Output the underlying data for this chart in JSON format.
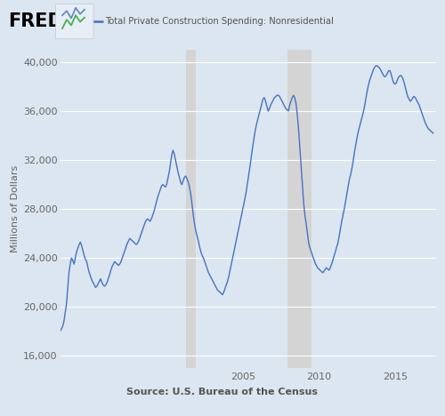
{
  "title": "Total Private Construction Spending: Nonresidential",
  "ylabel": "Millions of Dollars",
  "source": "Source: U.S. Bureau of the Census",
  "background_color": "#dce6f0",
  "plot_background": "#dce6f0",
  "line_color": "#4472c4",
  "line_width": 1.0,
  "ylim": [
    15000,
    41000
  ],
  "yticks": [
    16000,
    20000,
    24000,
    28000,
    32000,
    36000,
    40000
  ],
  "xlim_start": 1993.0,
  "xlim_end": 2017.7,
  "xtick_years": [
    2005,
    2010,
    2015
  ],
  "recession_bands": [
    {
      "start": 2001.25,
      "end": 2001.917
    },
    {
      "start": 2007.917,
      "end": 2009.5
    }
  ],
  "recession_color": "#d4d4d4",
  "axis_text_color": "#666666",
  "series": {
    "dates": [
      1993.0,
      1993.083,
      1993.167,
      1993.25,
      1993.333,
      1993.417,
      1993.5,
      1993.583,
      1993.667,
      1993.75,
      1993.833,
      1993.917,
      1994.0,
      1994.083,
      1994.167,
      1994.25,
      1994.333,
      1994.417,
      1994.5,
      1994.583,
      1994.667,
      1994.75,
      1994.833,
      1994.917,
      1995.0,
      1995.083,
      1995.167,
      1995.25,
      1995.333,
      1995.417,
      1995.5,
      1995.583,
      1995.667,
      1995.75,
      1995.833,
      1995.917,
      1996.0,
      1996.083,
      1996.167,
      1996.25,
      1996.333,
      1996.417,
      1996.5,
      1996.583,
      1996.667,
      1996.75,
      1996.833,
      1996.917,
      1997.0,
      1997.083,
      1997.167,
      1997.25,
      1997.333,
      1997.417,
      1997.5,
      1997.583,
      1997.667,
      1997.75,
      1997.833,
      1997.917,
      1998.0,
      1998.083,
      1998.167,
      1998.25,
      1998.333,
      1998.417,
      1998.5,
      1998.583,
      1998.667,
      1998.75,
      1998.833,
      1998.917,
      1999.0,
      1999.083,
      1999.167,
      1999.25,
      1999.333,
      1999.417,
      1999.5,
      1999.583,
      1999.667,
      1999.75,
      1999.833,
      1999.917,
      2000.0,
      2000.083,
      2000.167,
      2000.25,
      2000.333,
      2000.417,
      2000.5,
      2000.583,
      2000.667,
      2000.75,
      2000.833,
      2000.917,
      2001.0,
      2001.083,
      2001.167,
      2001.25,
      2001.333,
      2001.417,
      2001.5,
      2001.583,
      2001.667,
      2001.75,
      2001.833,
      2001.917,
      2002.0,
      2002.083,
      2002.167,
      2002.25,
      2002.333,
      2002.417,
      2002.5,
      2002.583,
      2002.667,
      2002.75,
      2002.833,
      2002.917,
      2003.0,
      2003.083,
      2003.167,
      2003.25,
      2003.333,
      2003.417,
      2003.5,
      2003.583,
      2003.667,
      2003.75,
      2003.833,
      2003.917,
      2004.0,
      2004.083,
      2004.167,
      2004.25,
      2004.333,
      2004.417,
      2004.5,
      2004.583,
      2004.667,
      2004.75,
      2004.833,
      2004.917,
      2005.0,
      2005.083,
      2005.167,
      2005.25,
      2005.333,
      2005.417,
      2005.5,
      2005.583,
      2005.667,
      2005.75,
      2005.833,
      2005.917,
      2006.0,
      2006.083,
      2006.167,
      2006.25,
      2006.333,
      2006.417,
      2006.5,
      2006.583,
      2006.667,
      2006.75,
      2006.833,
      2006.917,
      2007.0,
      2007.083,
      2007.167,
      2007.25,
      2007.333,
      2007.417,
      2007.5,
      2007.583,
      2007.667,
      2007.75,
      2007.833,
      2007.917,
      2008.0,
      2008.083,
      2008.167,
      2008.25,
      2008.333,
      2008.417,
      2008.5,
      2008.583,
      2008.667,
      2008.75,
      2008.833,
      2008.917,
      2009.0,
      2009.083,
      2009.167,
      2009.25,
      2009.333,
      2009.417,
      2009.5,
      2009.583,
      2009.667,
      2009.75,
      2009.833,
      2009.917,
      2010.0,
      2010.083,
      2010.167,
      2010.25,
      2010.333,
      2010.417,
      2010.5,
      2010.583,
      2010.667,
      2010.75,
      2010.833,
      2010.917,
      2011.0,
      2011.083,
      2011.167,
      2011.25,
      2011.333,
      2011.417,
      2011.5,
      2011.583,
      2011.667,
      2011.75,
      2011.833,
      2011.917,
      2012.0,
      2012.083,
      2012.167,
      2012.25,
      2012.333,
      2012.417,
      2012.5,
      2012.583,
      2012.667,
      2012.75,
      2012.833,
      2012.917,
      2013.0,
      2013.083,
      2013.167,
      2013.25,
      2013.333,
      2013.417,
      2013.5,
      2013.583,
      2013.667,
      2013.75,
      2013.833,
      2013.917,
      2014.0,
      2014.083,
      2014.167,
      2014.25,
      2014.333,
      2014.417,
      2014.5,
      2014.583,
      2014.667,
      2014.75,
      2014.833,
      2014.917,
      2015.0,
      2015.083,
      2015.167,
      2015.25,
      2015.333,
      2015.417,
      2015.5,
      2015.583,
      2015.667,
      2015.75,
      2015.833,
      2015.917,
      2016.0,
      2016.083,
      2016.167,
      2016.25,
      2016.333,
      2016.417,
      2016.5,
      2016.583,
      2016.667,
      2016.75,
      2016.833,
      2016.917,
      2017.0,
      2017.083,
      2017.167,
      2017.25,
      2017.333,
      2017.417,
      2017.5
    ],
    "values": [
      18000,
      18200,
      18400,
      18800,
      19500,
      20200,
      21500,
      22800,
      23500,
      24000,
      23800,
      23500,
      24000,
      24500,
      24800,
      25100,
      25300,
      25000,
      24600,
      24200,
      23900,
      23700,
      23200,
      22800,
      22500,
      22200,
      22000,
      21800,
      21600,
      21700,
      21900,
      22100,
      22300,
      22000,
      21800,
      21700,
      21800,
      22000,
      22300,
      22600,
      23000,
      23300,
      23500,
      23700,
      23600,
      23500,
      23400,
      23500,
      23700,
      24000,
      24300,
      24600,
      24900,
      25200,
      25400,
      25600,
      25500,
      25400,
      25300,
      25200,
      25100,
      25200,
      25400,
      25700,
      26000,
      26300,
      26600,
      26900,
      27100,
      27200,
      27100,
      27000,
      27200,
      27500,
      27800,
      28200,
      28600,
      29000,
      29300,
      29600,
      29900,
      30000,
      29900,
      29800,
      30000,
      30500,
      31000,
      31700,
      32400,
      32800,
      32500,
      32000,
      31500,
      31000,
      30600,
      30200,
      30000,
      30300,
      30600,
      30700,
      30500,
      30200,
      29800,
      29200,
      28400,
      27500,
      26800,
      26200,
      25800,
      25400,
      24900,
      24500,
      24200,
      24000,
      23700,
      23400,
      23100,
      22800,
      22600,
      22400,
      22200,
      22000,
      21800,
      21600,
      21400,
      21300,
      21200,
      21100,
      21000,
      21200,
      21500,
      21800,
      22100,
      22500,
      23000,
      23500,
      24000,
      24500,
      25000,
      25500,
      26000,
      26500,
      27000,
      27500,
      28000,
      28500,
      29000,
      29600,
      30300,
      31000,
      31700,
      32500,
      33200,
      33900,
      34500,
      35000,
      35400,
      35800,
      36200,
      36600,
      37000,
      37100,
      36800,
      36400,
      36000,
      36200,
      36500,
      36700,
      36900,
      37100,
      37200,
      37300,
      37300,
      37200,
      37000,
      36800,
      36600,
      36400,
      36200,
      36100,
      36000,
      36500,
      36800,
      37100,
      37300,
      37100,
      36600,
      35700,
      34500,
      33000,
      31500,
      30000,
      28500,
      27500,
      26800,
      26000,
      25200,
      24800,
      24500,
      24200,
      23900,
      23600,
      23400,
      23200,
      23100,
      23000,
      22900,
      22800,
      22900,
      23100,
      23200,
      23100,
      23000,
      23200,
      23500,
      23800,
      24200,
      24500,
      24900,
      25200,
      25800,
      26400,
      27000,
      27500,
      28000,
      28600,
      29200,
      29800,
      30400,
      30800,
      31300,
      31900,
      32600,
      33200,
      33800,
      34300,
      34700,
      35100,
      35500,
      35900,
      36400,
      37000,
      37600,
      38100,
      38500,
      38800,
      39100,
      39400,
      39600,
      39700,
      39700,
      39600,
      39500,
      39300,
      39100,
      38900,
      38800,
      38900,
      39100,
      39300,
      39300,
      39000,
      38600,
      38300,
      38200,
      38300,
      38600,
      38800,
      38900,
      38900,
      38700,
      38400,
      38000,
      37600,
      37200,
      37000,
      36800,
      36900,
      37100,
      37200,
      37100,
      36900,
      36700,
      36500,
      36200,
      35900,
      35600,
      35300,
      35000,
      34800,
      34600,
      34500,
      34400,
      34300,
      34200
    ]
  }
}
